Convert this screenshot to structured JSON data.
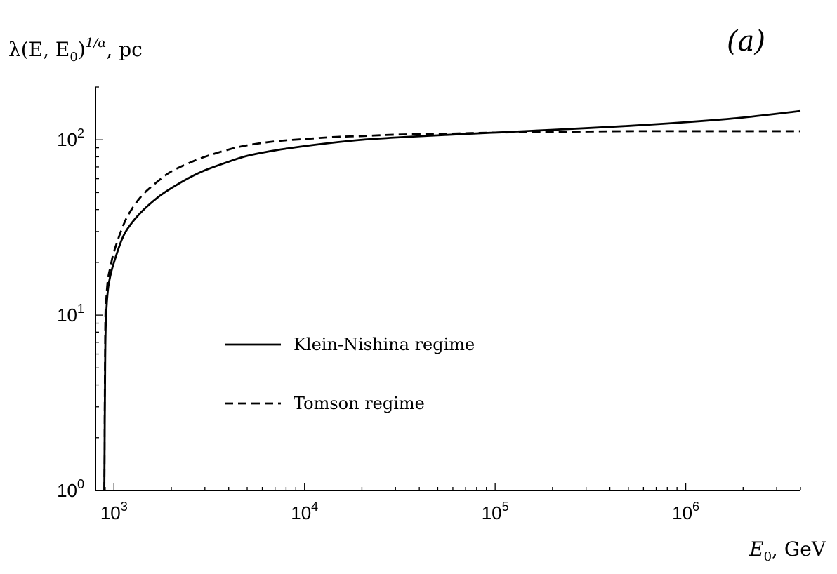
{
  "chart_data": {
    "type": "line",
    "panel_label": "(a)",
    "ylabel": {
      "main": "λ(E, E",
      "sub": "0",
      "sup_paren": ")",
      "sup": "1/α",
      "unit": ", pc"
    },
    "xlabel": {
      "main": "E",
      "sub": "0",
      "unit": ", GeV"
    },
    "x_scale": "log",
    "y_scale": "log",
    "xlim": [
      800,
      4000000
    ],
    "ylim": [
      1,
      200
    ],
    "x_ticks": [
      {
        "value": 1000,
        "base": "10",
        "exp": "3"
      },
      {
        "value": 10000,
        "base": "10",
        "exp": "4"
      },
      {
        "value": 100000,
        "base": "10",
        "exp": "5"
      },
      {
        "value": 1000000,
        "base": "10",
        "exp": "6"
      }
    ],
    "y_ticks": [
      {
        "value": 1,
        "base": "10",
        "exp": "0"
      },
      {
        "value": 10,
        "base": "10",
        "exp": "1"
      },
      {
        "value": 100,
        "base": "10",
        "exp": "2"
      }
    ],
    "legend_position": "center-left",
    "series": [
      {
        "name": "Klein-Nishina regime",
        "style": "solid",
        "x": [
          890,
          900,
          910,
          930,
          960,
          1000,
          1100,
          1200,
          1400,
          1700,
          2000,
          2500,
          3000,
          4000,
          5000,
          7000,
          10000,
          15000,
          20000,
          30000,
          50000,
          70000,
          100000,
          200000,
          500000,
          1000000,
          2000000,
          4000000
        ],
        "y": [
          1,
          6,
          10,
          14,
          17,
          20,
          27,
          32,
          39,
          47,
          53,
          61,
          67,
          75,
          81,
          87,
          92,
          97,
          100,
          103,
          106,
          108,
          110,
          114,
          120,
          126,
          134,
          146
        ]
      },
      {
        "name": "Tomson regime",
        "style": "dashed",
        "x": [
          890,
          900,
          910,
          930,
          960,
          1000,
          1100,
          1200,
          1400,
          1700,
          2000,
          2500,
          3000,
          4000,
          5000,
          7000,
          10000,
          15000,
          20000,
          30000,
          50000,
          70000,
          100000,
          200000,
          500000,
          1000000,
          2000000,
          4000000
        ],
        "y": [
          1,
          8,
          12,
          16,
          19,
          23,
          31,
          38,
          48,
          58,
          66,
          74,
          80,
          88,
          93,
          98,
          101,
          104,
          105,
          107,
          108,
          109,
          110,
          111,
          112,
          112,
          112,
          112
        ]
      }
    ]
  }
}
